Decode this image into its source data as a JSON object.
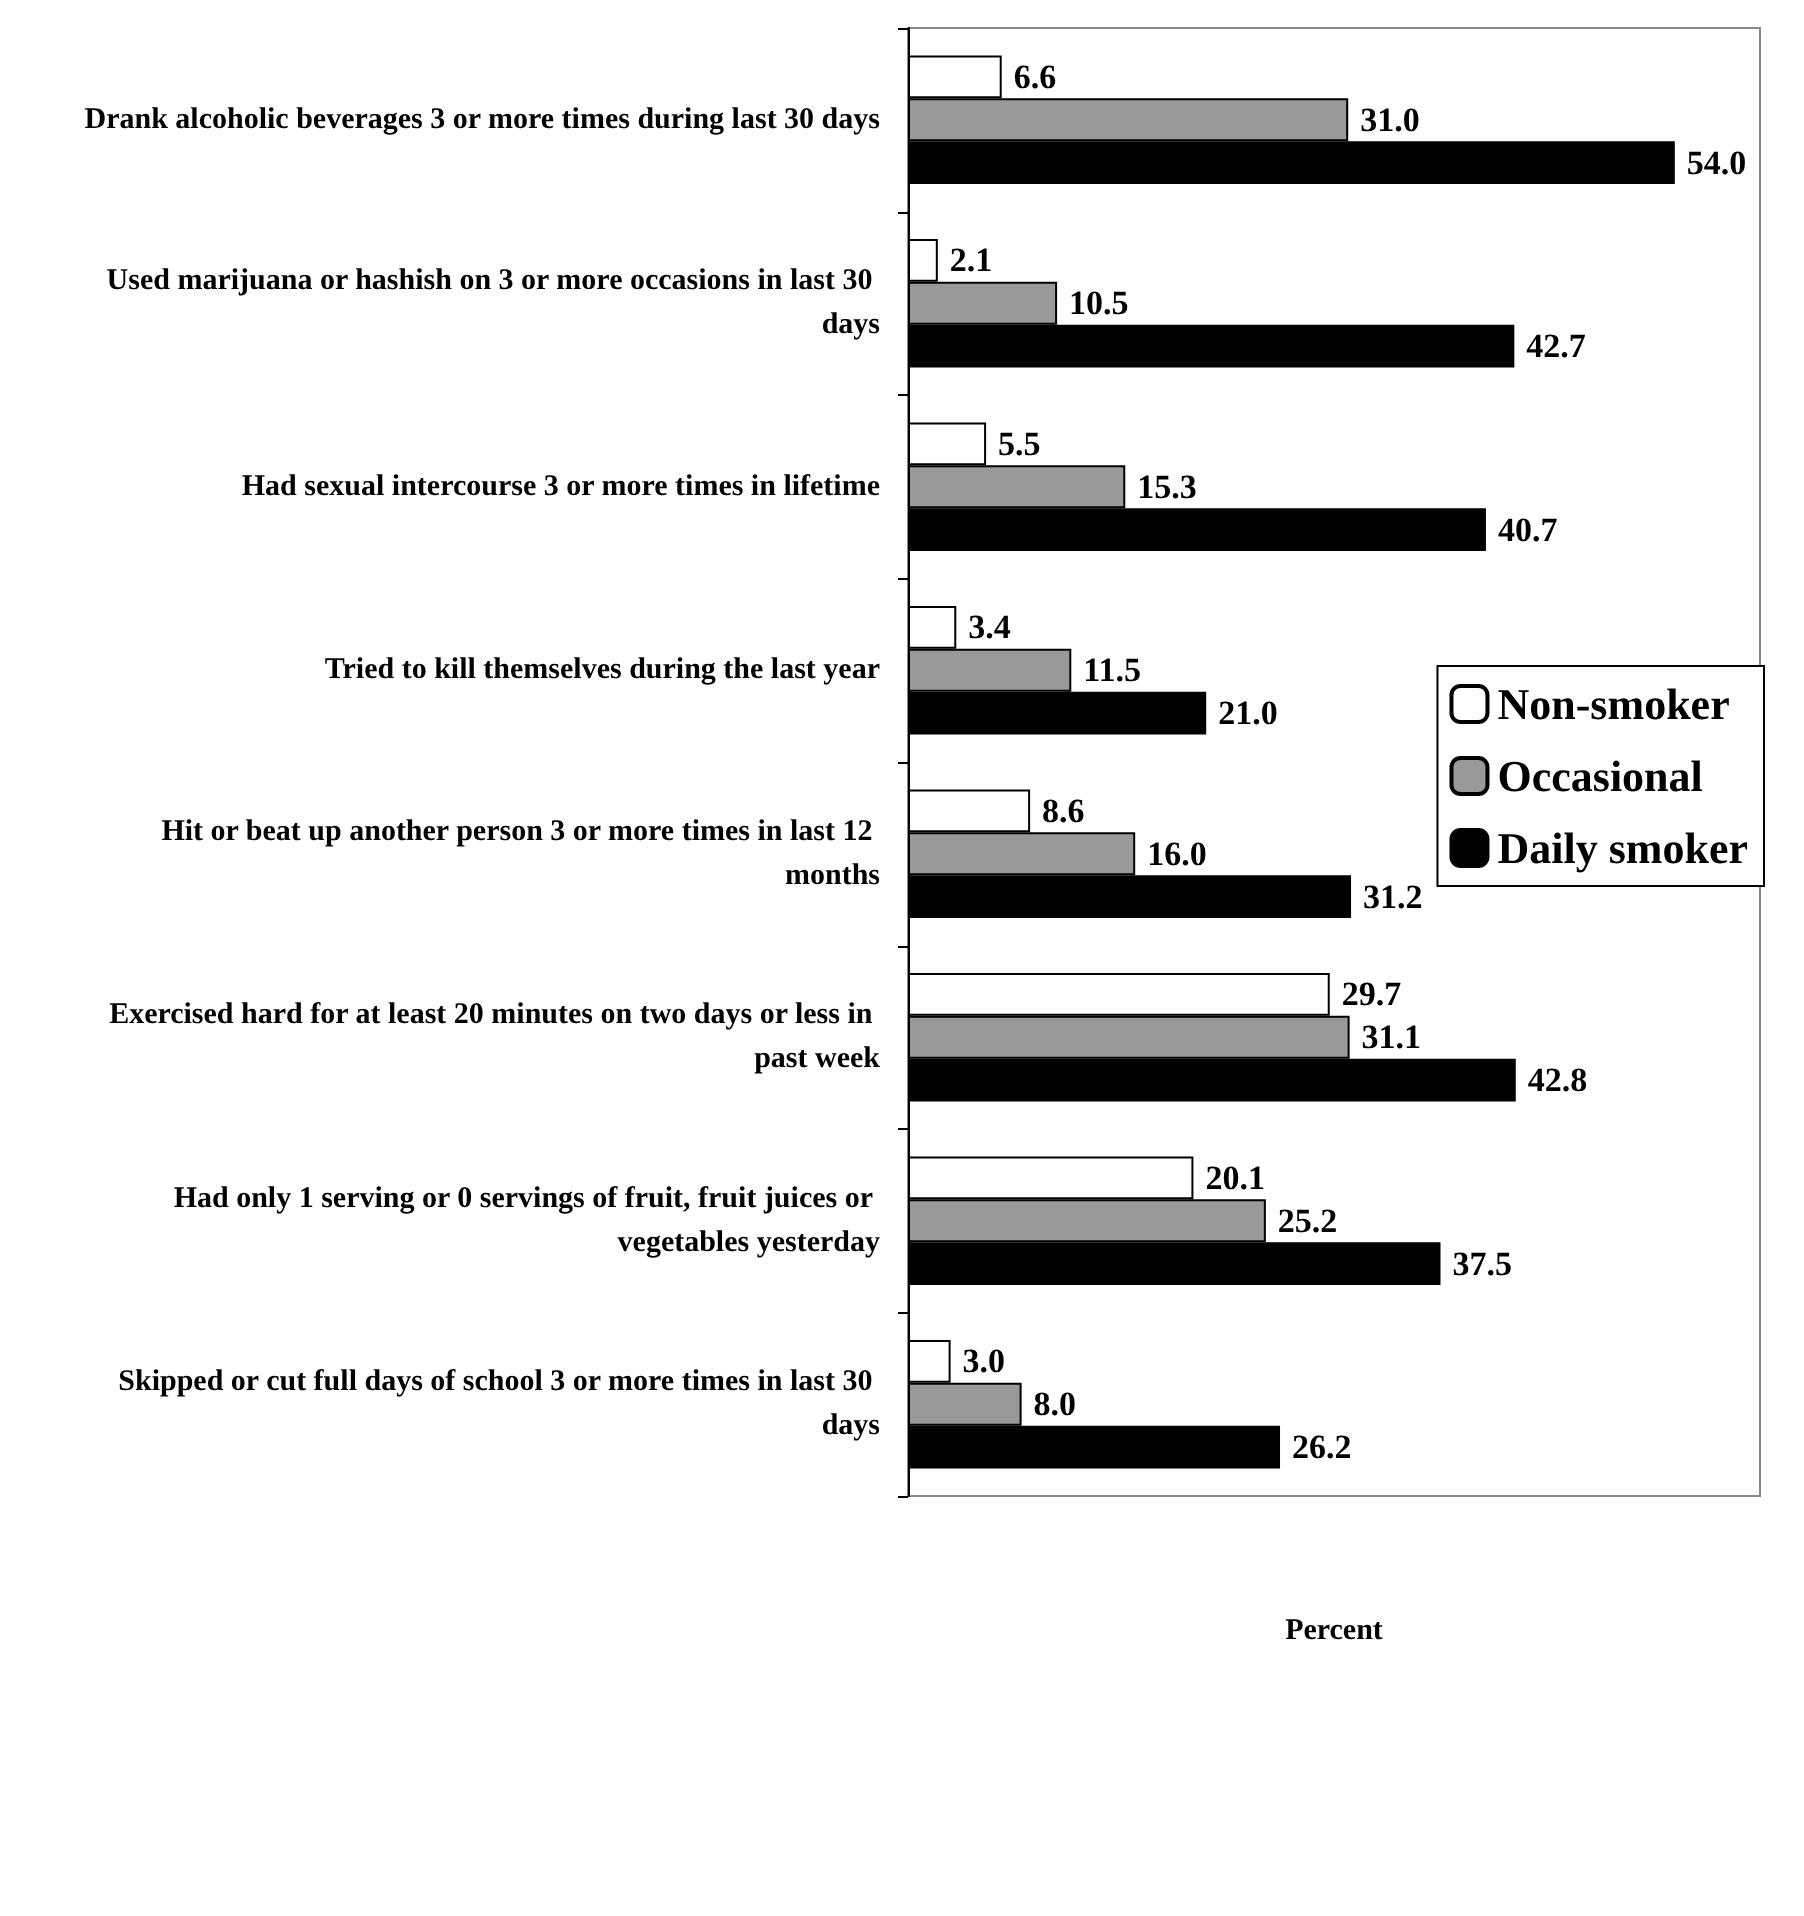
{
  "chart_data": {
    "type": "bar",
    "orientation": "horizontal",
    "xlabel": "Percent",
    "categories": [
      "Drank alcoholic beverages 3 or more times during last 30 days",
      "Used marijuana or hashish on 3 or more occasions in last 30 days",
      "Had sexual intercourse 3 or more times in lifetime",
      "Tried to kill themselves during the last year",
      "Hit or beat up another person 3 or more times in last 12 months",
      "Exercised hard for at least 20 minutes on two days or less in past week",
      "Had only 1 serving or 0 servings of fruit, fruit juices or vegetables yesterday",
      "Skipped or cut full days of school 3 or more times in last 30 days"
    ],
    "series": [
      {
        "name": "Non-smoker",
        "color": "#ffffff",
        "values": [
          6.6,
          2.1,
          5.5,
          3.4,
          8.6,
          29.7,
          20.1,
          3.0
        ],
        "value_labels": [
          "6.6",
          "2.1",
          "5.5",
          "3.4",
          "8.6",
          "29.7",
          "20.1",
          "3.0"
        ]
      },
      {
        "name": "Occasional",
        "color": "#999999",
        "values": [
          31.0,
          10.5,
          15.3,
          11.5,
          16.0,
          31.1,
          25.2,
          8.0
        ],
        "value_labels": [
          "31.0",
          "10.5",
          "15.3",
          "11.5",
          "16.0",
          "31.1",
          "25.2",
          "8.0"
        ]
      },
      {
        "name": "Daily smoker",
        "color": "#000000",
        "values": [
          54.0,
          42.7,
          40.7,
          21.0,
          31.2,
          42.8,
          37.5,
          26.2
        ],
        "value_labels": [
          "54.0",
          "42.7",
          "40.7",
          "21.0",
          "31.2",
          "42.8",
          "37.5",
          "26.2"
        ]
      }
    ],
    "xlim": [
      0,
      60
    ],
    "tick_labels": "y",
    "grid": false,
    "legend": "right"
  }
}
